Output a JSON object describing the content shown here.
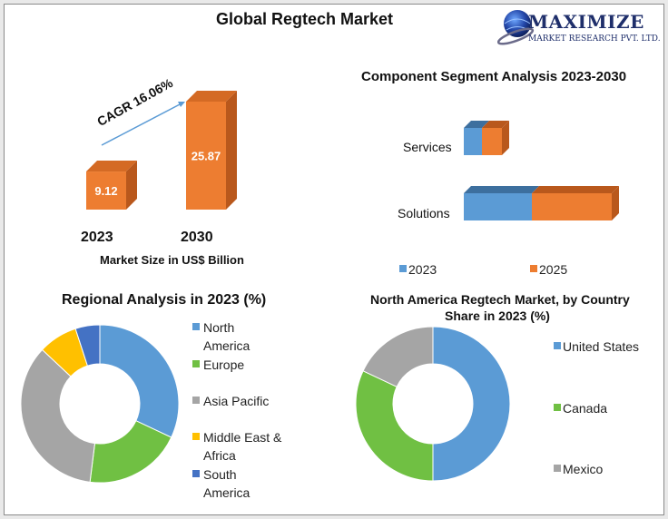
{
  "page": {
    "title": "Global Regtech Market",
    "logo": {
      "main": "MAXIMIZE",
      "sub": "MARKET RESEARCH PVT. LTD."
    }
  },
  "colors": {
    "orange": "#ed7d31",
    "orange_dark": "#b9581c",
    "orange_top": "#d46a24",
    "blue": "#5b9bd5",
    "blue_dark": "#3d6f9e",
    "green": "#70c043",
    "gray": "#a5a5a5",
    "gold": "#ffc000",
    "navy": "#4472c4"
  },
  "chart_data": [
    {
      "type": "bar",
      "categories": [
        "2023",
        "2030"
      ],
      "values": [
        9.12,
        25.87
      ],
      "value_labels": [
        "9.12",
        "25.87"
      ],
      "xlabel": "Market Size in US$ Billion",
      "annotation": "CAGR 16.06%"
    },
    {
      "type": "bar",
      "orientation": "horizontal",
      "stacked": true,
      "title": "Component Segment Analysis 2023-2030",
      "categories": [
        "Services",
        "Solutions"
      ],
      "series": [
        {
          "name": "2023",
          "values": [
            20,
            75
          ]
        },
        {
          "name": "2025",
          "values": [
            22,
            88
          ]
        }
      ]
    },
    {
      "type": "pie",
      "donut": true,
      "title": "Regional Analysis in 2023 (%)",
      "labels": [
        "North America",
        "Europe",
        "Asia Pacific",
        "Middle East & Africa",
        "South America"
      ],
      "legend_lines": [
        [
          "North",
          "America"
        ],
        [
          "Europe"
        ],
        [
          "Asia Pacific"
        ],
        [
          "Middle East &",
          "Africa"
        ],
        [
          "South",
          "America"
        ]
      ],
      "values": [
        32,
        20,
        35,
        8,
        5
      ]
    },
    {
      "type": "pie",
      "donut": true,
      "title_lines": [
        "North America Regtech Market, by Country",
        "Share in 2023 (%)"
      ],
      "labels": [
        "United States",
        "Canada",
        "Mexico"
      ],
      "values": [
        50,
        32,
        18
      ]
    }
  ]
}
